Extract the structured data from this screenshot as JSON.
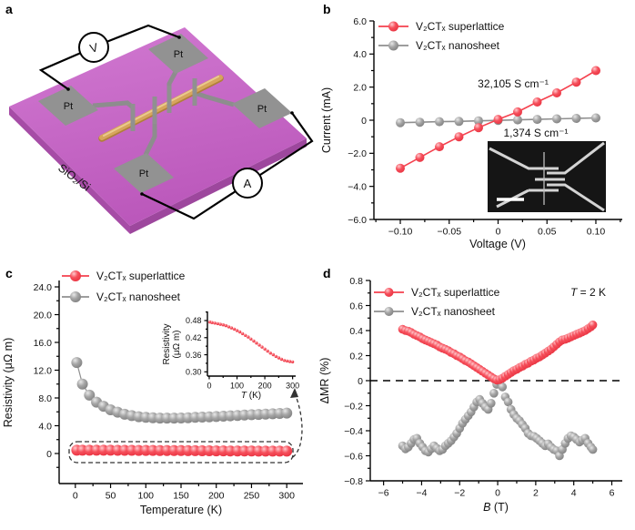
{
  "figure": {
    "panel_labels": {
      "a": "a",
      "b": "b",
      "c": "c",
      "d": "d"
    },
    "colors": {
      "red": {
        "hi": "#ffc9cd",
        "mid": "#f6505c",
        "lo": "#e7303e",
        "line": "#f5414e"
      },
      "gray": {
        "hi": "#e8e8e8",
        "mid": "#a6a6a6",
        "lo": "#7c7c7c",
        "line": "#8f8f8f"
      },
      "substrate_top": "#c565c5",
      "substrate_side": "#a64ca6",
      "pad": "#929292",
      "nanowire": "#d7a55d",
      "axis": "#000000"
    }
  },
  "panel_a": {
    "pad_label": "Pt",
    "voltmeter_label": "V",
    "ammeter_label": "A",
    "substrate_label": "SiO₂/Si"
  },
  "chart_data": [
    {
      "panel": "b",
      "type": "scatter",
      "xlabel": "Voltage (V)",
      "ylabel": "Current (mA)",
      "xlim": [
        -0.127,
        0.127
      ],
      "ylim": [
        -6,
        6
      ],
      "xticks": [
        {
          "v": -0.1,
          "l": "−0.10"
        },
        {
          "v": -0.05,
          "l": "−0.05"
        },
        {
          "v": 0,
          "l": "0"
        },
        {
          "v": 0.05,
          "l": "0.05"
        },
        {
          "v": 0.1,
          "l": "0.10"
        }
      ],
      "yticks": [
        {
          "v": 6,
          "l": "6.0"
        },
        {
          "v": 4,
          "l": "4.0"
        },
        {
          "v": 2,
          "l": "2.0"
        },
        {
          "v": 0,
          "l": "0"
        },
        {
          "v": -2,
          "l": "−2.0"
        },
        {
          "v": -4,
          "l": "−4.0"
        },
        {
          "v": -6,
          "l": "−6.0"
        }
      ],
      "x": [
        -0.1,
        -0.08,
        -0.06,
        -0.04,
        -0.02,
        0,
        0.02,
        0.04,
        0.06,
        0.08,
        0.1
      ],
      "series": [
        {
          "name": "superlattice",
          "label": "V₂CTₓ superlattice",
          "color": "red",
          "line": true,
          "y": [
            -2.9,
            -2.25,
            -1.6,
            -1.0,
            -0.45,
            0.05,
            0.5,
            1.1,
            1.65,
            2.3,
            3.0
          ]
        },
        {
          "name": "nanosheet",
          "label": "V₂CTₓ nanosheet",
          "color": "gray",
          "line": true,
          "y": [
            -0.15,
            -0.12,
            -0.09,
            -0.07,
            -0.04,
            -0.01,
            0.02,
            0.05,
            0.08,
            0.11,
            0.14
          ]
        }
      ],
      "annotations": [
        {
          "id": "slope_hi",
          "text": "32,105 S cm⁻¹"
        },
        {
          "id": "slope_lo",
          "text": "1,374 S cm⁻¹"
        }
      ],
      "legend": true
    },
    {
      "panel": "c",
      "type": "scatter",
      "xlabel": "Temperature (K)",
      "ylabel": "Resistivity (μΩ m)",
      "xlim": [
        -23,
        323
      ],
      "ylim": [
        -4.33,
        24.92
      ],
      "xticks": [
        {
          "v": 0,
          "l": "0"
        },
        {
          "v": 50,
          "l": "50"
        },
        {
          "v": 100,
          "l": "100"
        },
        {
          "v": 150,
          "l": "150"
        },
        {
          "v": 200,
          "l": "200"
        },
        {
          "v": 250,
          "l": "250"
        },
        {
          "v": 300,
          "l": "300"
        }
      ],
      "yticks": [
        {
          "v": 24,
          "l": "24.0"
        },
        {
          "v": 20,
          "l": "20.0"
        },
        {
          "v": 16,
          "l": "16.0"
        },
        {
          "v": 12,
          "l": "12.0"
        },
        {
          "v": 8,
          "l": "8.0"
        },
        {
          "v": 4,
          "l": "4.0"
        },
        {
          "v": 0,
          "l": "0"
        }
      ],
      "x": [
        2,
        10,
        20,
        30,
        40,
        50,
        60,
        70,
        80,
        90,
        100,
        110,
        120,
        130,
        140,
        150,
        160,
        170,
        180,
        190,
        200,
        210,
        220,
        230,
        240,
        250,
        260,
        270,
        280,
        290,
        300
      ],
      "series": [
        {
          "name": "superlattice",
          "label": "V₂CTₓ superlattice",
          "color": "red",
          "line": true,
          "y": [
            0.475,
            0.473,
            0.471,
            0.469,
            0.467,
            0.465,
            0.462,
            0.458,
            0.454,
            0.45,
            0.445,
            0.44,
            0.434,
            0.428,
            0.422,
            0.415,
            0.408,
            0.401,
            0.394,
            0.387,
            0.38,
            0.373,
            0.366,
            0.36,
            0.354,
            0.349,
            0.344,
            0.34,
            0.338,
            0.336,
            0.335
          ]
        },
        {
          "name": "nanosheet",
          "label": "V₂CTₓ nanosheet",
          "color": "gray",
          "line": true,
          "y": [
            13.1,
            10.0,
            8.4,
            7.4,
            6.8,
            6.3,
            5.95,
            5.65,
            5.45,
            5.3,
            5.2,
            5.15,
            5.1,
            5.1,
            5.1,
            5.12,
            5.15,
            5.2,
            5.24,
            5.28,
            5.33,
            5.38,
            5.43,
            5.48,
            5.53,
            5.58,
            5.63,
            5.68,
            5.72,
            5.77,
            5.82
          ]
        }
      ],
      "annotations": [],
      "legend": true
    },
    {
      "panel": "c_inset",
      "type": "scatter",
      "xlabel": [
        {
          "t": "T",
          "i": true
        },
        {
          "t": " (K)"
        }
      ],
      "ylabel": [
        "Resistivity",
        "(μΩ m)"
      ],
      "xlim": [
        -6.5,
        311
      ],
      "ylim": [
        0.285,
        0.512
      ],
      "xticks": [
        {
          "v": 0,
          "l": "0"
        },
        {
          "v": 100,
          "l": "100"
        },
        {
          "v": 200,
          "l": "200"
        },
        {
          "v": 300,
          "l": "300"
        }
      ],
      "yticks": [
        {
          "v": 0.48,
          "l": "0.48"
        },
        {
          "v": 0.42,
          "l": "0.42"
        },
        {
          "v": 0.36,
          "l": "0.36"
        },
        {
          "v": 0.3,
          "l": "0.30"
        }
      ],
      "x": [
        2,
        10,
        20,
        30,
        40,
        50,
        60,
        70,
        80,
        90,
        100,
        110,
        120,
        130,
        140,
        150,
        160,
        170,
        180,
        190,
        200,
        210,
        220,
        230,
        240,
        250,
        260,
        270,
        280,
        290,
        300
      ],
      "series": [
        {
          "name": "superlattice",
          "label": "V₂CTₓ superlattice",
          "color": "red",
          "line": false,
          "legend_hide": true,
          "y": [
            0.475,
            0.473,
            0.471,
            0.469,
            0.467,
            0.465,
            0.462,
            0.458,
            0.454,
            0.45,
            0.445,
            0.44,
            0.434,
            0.428,
            0.422,
            0.415,
            0.408,
            0.401,
            0.394,
            0.387,
            0.38,
            0.373,
            0.366,
            0.36,
            0.354,
            0.349,
            0.344,
            0.34,
            0.338,
            0.336,
            0.335
          ]
        }
      ],
      "annotations": [],
      "legend": false
    },
    {
      "panel": "d",
      "type": "scatter",
      "xlabel": [
        {
          "t": "B",
          "i": true
        },
        {
          "t": " (T)"
        }
      ],
      "ylabel": "ΔMR (%)",
      "xlim": [
        -6.7,
        6.55
      ],
      "ylim": [
        -0.8,
        0.8
      ],
      "zero_dashed": true,
      "xticks": [
        {
          "v": -6,
          "l": "−6"
        },
        {
          "v": -4,
          "l": "−4"
        },
        {
          "v": -2,
          "l": "−2"
        },
        {
          "v": 0,
          "l": "0"
        },
        {
          "v": 2,
          "l": "2"
        },
        {
          "v": 4,
          "l": "4"
        },
        {
          "v": 6,
          "l": "6"
        }
      ],
      "yticks": [
        {
          "v": 0.8,
          "l": "0.8"
        },
        {
          "v": 0.6,
          "l": "0.6"
        },
        {
          "v": 0.4,
          "l": "0.4"
        },
        {
          "v": 0.2,
          "l": "0.2"
        },
        {
          "v": 0,
          "l": "0"
        },
        {
          "v": -0.2,
          "l": "−0.2"
        },
        {
          "v": -0.4,
          "l": "−0.4"
        },
        {
          "v": -0.6,
          "l": "−0.6"
        },
        {
          "v": -0.8,
          "l": "−0.8"
        }
      ],
      "x": [
        -5,
        -4.85,
        -4.7,
        -4.55,
        -4.4,
        -4.25,
        -4.1,
        -3.95,
        -3.8,
        -3.65,
        -3.5,
        -3.35,
        -3.2,
        -3.05,
        -2.9,
        -2.75,
        -2.6,
        -2.45,
        -2.3,
        -2.15,
        -2,
        -1.85,
        -1.7,
        -1.55,
        -1.4,
        -1.25,
        -1.1,
        -0.95,
        -0.8,
        -0.65,
        -0.5,
        -0.35,
        -0.2,
        -0.05,
        0.1,
        0.25,
        0.4,
        0.55,
        0.7,
        0.85,
        1,
        1.15,
        1.3,
        1.45,
        1.6,
        1.75,
        1.9,
        2.05,
        2.2,
        2.35,
        2.5,
        2.65,
        2.8,
        2.95,
        3.1,
        3.25,
        3.4,
        3.55,
        3.7,
        3.85,
        4,
        4.15,
        4.3,
        4.45,
        4.6,
        4.75,
        4.9,
        5
      ],
      "series": [
        {
          "name": "superlattice",
          "label": "V₂CTₓ superlattice",
          "color": "red",
          "line": false,
          "y": [
            0.41,
            0.4,
            0.395,
            0.385,
            0.37,
            0.36,
            0.35,
            0.335,
            0.325,
            0.315,
            0.305,
            0.295,
            0.285,
            0.27,
            0.26,
            0.25,
            0.24,
            0.225,
            0.215,
            0.2,
            0.19,
            0.175,
            0.16,
            0.15,
            0.135,
            0.12,
            0.105,
            0.09,
            0.075,
            0.06,
            0.045,
            0.03,
            0.015,
            0.005,
            0.008,
            0.02,
            0.035,
            0.05,
            0.065,
            0.08,
            0.09,
            0.105,
            0.115,
            0.13,
            0.14,
            0.155,
            0.165,
            0.18,
            0.19,
            0.205,
            0.22,
            0.235,
            0.25,
            0.27,
            0.29,
            0.31,
            0.325,
            0.33,
            0.34,
            0.35,
            0.36,
            0.37,
            0.38,
            0.39,
            0.4,
            0.415,
            0.43,
            0.445
          ]
        },
        {
          "name": "nanosheet",
          "label": "V₂CTₓ nanosheet",
          "color": "gray",
          "line": false,
          "y": [
            -0.52,
            -0.545,
            -0.53,
            -0.5,
            -0.47,
            -0.46,
            -0.5,
            -0.53,
            -0.56,
            -0.57,
            -0.545,
            -0.52,
            -0.54,
            -0.56,
            -0.55,
            -0.52,
            -0.5,
            -0.48,
            -0.45,
            -0.42,
            -0.38,
            -0.34,
            -0.31,
            -0.28,
            -0.25,
            -0.21,
            -0.17,
            -0.15,
            -0.18,
            -0.21,
            -0.23,
            -0.18,
            -0.1,
            -0.03,
            -0.01,
            -0.05,
            -0.13,
            -0.17,
            -0.23,
            -0.27,
            -0.3,
            -0.32,
            -0.35,
            -0.38,
            -0.42,
            -0.44,
            -0.445,
            -0.46,
            -0.48,
            -0.5,
            -0.52,
            -0.505,
            -0.53,
            -0.55,
            -0.56,
            -0.6,
            -0.55,
            -0.5,
            -0.46,
            -0.44,
            -0.45,
            -0.47,
            -0.49,
            -0.475,
            -0.46,
            -0.5,
            -0.53,
            -0.55
          ]
        }
      ],
      "annotations": [
        {
          "id": "temp",
          "text": [
            {
              "t": "T",
              "i": true
            },
            {
              "t": " = 2 K"
            }
          ]
        }
      ],
      "legend": true
    }
  ]
}
